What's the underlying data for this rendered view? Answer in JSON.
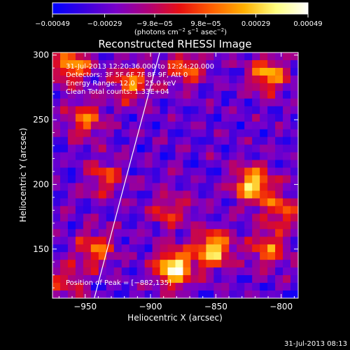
{
  "colorbar": {
    "tick_values": [
      -0.00049,
      -0.00029,
      -9.8e-05,
      9.8e-05,
      0.00029,
      0.00049
    ],
    "tick_labels": [
      "−0.00049",
      "−0.00029",
      "−9.8e−05",
      "9.8e−05",
      "0.00029",
      "0.00049"
    ],
    "units_main": "(photons cm",
    "units_sup1": "−2",
    "units_mid": " s",
    "units_sup2": "−1",
    "units_mid2": " asec",
    "units_sup3": "−2",
    "units_end": ")",
    "color_stops": [
      "#0000ff",
      "#3a00e0",
      "#7a00c8",
      "#b00078",
      "#e81010",
      "#ff6000",
      "#ffb000",
      "#ffff80",
      "#ffffff"
    ]
  },
  "chart_data": {
    "type": "heatmap",
    "title": "Reconstructed RHESSI Image",
    "xlabel": "Heliocentric X (arcsec)",
    "ylabel": "Heliocentric Y (arcsec)",
    "xlim": [
      -975,
      -787
    ],
    "ylim": [
      112,
      302
    ],
    "xticks": [
      -950,
      -900,
      -850,
      -800
    ],
    "xtick_labels": [
      "−950",
      "−900",
      "−850",
      "−800"
    ],
    "yticks": [
      150,
      200,
      250,
      300
    ],
    "ytick_labels": [
      "150",
      "200",
      "250",
      "300"
    ],
    "annotations": [
      "31-Jul-2013 12:20:36.000 to 12:24:20.000",
      "Detectors: 3F 5F 6F 7F 8F 9F, Att 0",
      "Energy Range: 12.0 − 25.0 keV",
      "Clean     Total counts: 1.33E+04"
    ],
    "peak_label": "Position of Peak = [−882,135]",
    "peak": [
      -882,
      135
    ],
    "limb_line": [
      [
        -943,
        112
      ],
      [
        -920,
        200
      ],
      [
        -893,
        302
      ]
    ],
    "bright_regions": [
      {
        "x": -960,
        "y": 292,
        "strength": 0.65
      },
      {
        "x": -915,
        "y": 278,
        "strength": 0.6
      },
      {
        "x": -875,
        "y": 290,
        "strength": 0.55
      },
      {
        "x": -810,
        "y": 285,
        "strength": 0.7
      },
      {
        "x": -950,
        "y": 250,
        "strength": 0.55
      },
      {
        "x": -822,
        "y": 200,
        "strength": 0.85
      },
      {
        "x": -800,
        "y": 180,
        "strength": 0.5
      },
      {
        "x": -935,
        "y": 205,
        "strength": 0.45
      },
      {
        "x": -882,
        "y": 135,
        "strength": 1.0
      },
      {
        "x": -852,
        "y": 150,
        "strength": 0.85
      },
      {
        "x": -942,
        "y": 150,
        "strength": 0.55
      },
      {
        "x": -810,
        "y": 150,
        "strength": 0.55
      },
      {
        "x": -885,
        "y": 180,
        "strength": 0.45
      },
      {
        "x": -965,
        "y": 125,
        "strength": 0.4
      }
    ]
  },
  "footer": {
    "timestamp": "31-Jul-2013 08:13"
  }
}
